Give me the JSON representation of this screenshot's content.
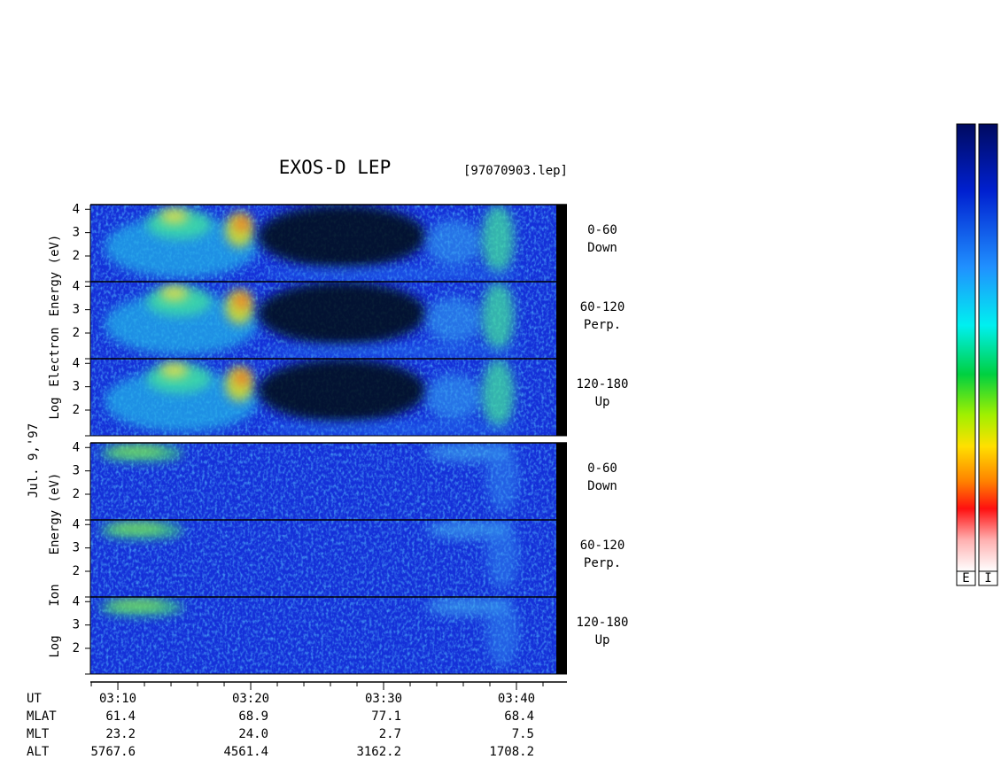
{
  "chart_data": {
    "type": "spectrogram",
    "title": "EXOS-D LEP",
    "file_label": "[97070903.lep]",
    "date_label": "Jul. 9,'97",
    "groups": [
      {
        "ylabel": [
          "Log",
          "Electron",
          "Energy (eV)"
        ],
        "panels": [
          {
            "angle": "0-60",
            "direction": "Down"
          },
          {
            "angle": "60-120",
            "direction": "Perp."
          },
          {
            "angle": "120-180",
            "direction": "Up"
          }
        ]
      },
      {
        "ylabel": [
          "Log",
          "Ion",
          "Energy (eV)"
        ],
        "panels": [
          {
            "angle": "0-60",
            "direction": "Down"
          },
          {
            "angle": "60-120",
            "direction": "Perp."
          },
          {
            "angle": "120-180",
            "direction": "Up"
          }
        ]
      }
    ],
    "ylim": [
      0.9,
      4.2
    ],
    "yticks": [
      2,
      3,
      4
    ],
    "xlim": [
      7.93,
      43.8
    ],
    "xticks": [
      {
        "value": 10,
        "label": "03:10"
      },
      {
        "value": 20,
        "label": "03:20"
      },
      {
        "value": 30,
        "label": "03:30"
      },
      {
        "value": 40,
        "label": "03:40"
      }
    ],
    "xminorticks": [
      8,
      12,
      14,
      16,
      18,
      22,
      24,
      26,
      28,
      32,
      34,
      36,
      38,
      42
    ],
    "ut_label": "UT",
    "ephemeris": [
      {
        "name": "MLAT",
        "values": [
          61.4,
          68.9,
          77.1,
          68.4
        ]
      },
      {
        "name": "MLT",
        "values": [
          23.2,
          24.0,
          2.7,
          7.5
        ],
        "value_labels": [
          "23.2",
          "24.0",
          "2.7",
          "7.5"
        ]
      },
      {
        "name": "ALT",
        "values": [
          5767.6,
          4561.4,
          3162.2,
          1708.2
        ]
      }
    ],
    "colorbar_labels": [
      "E",
      "I"
    ]
  }
}
